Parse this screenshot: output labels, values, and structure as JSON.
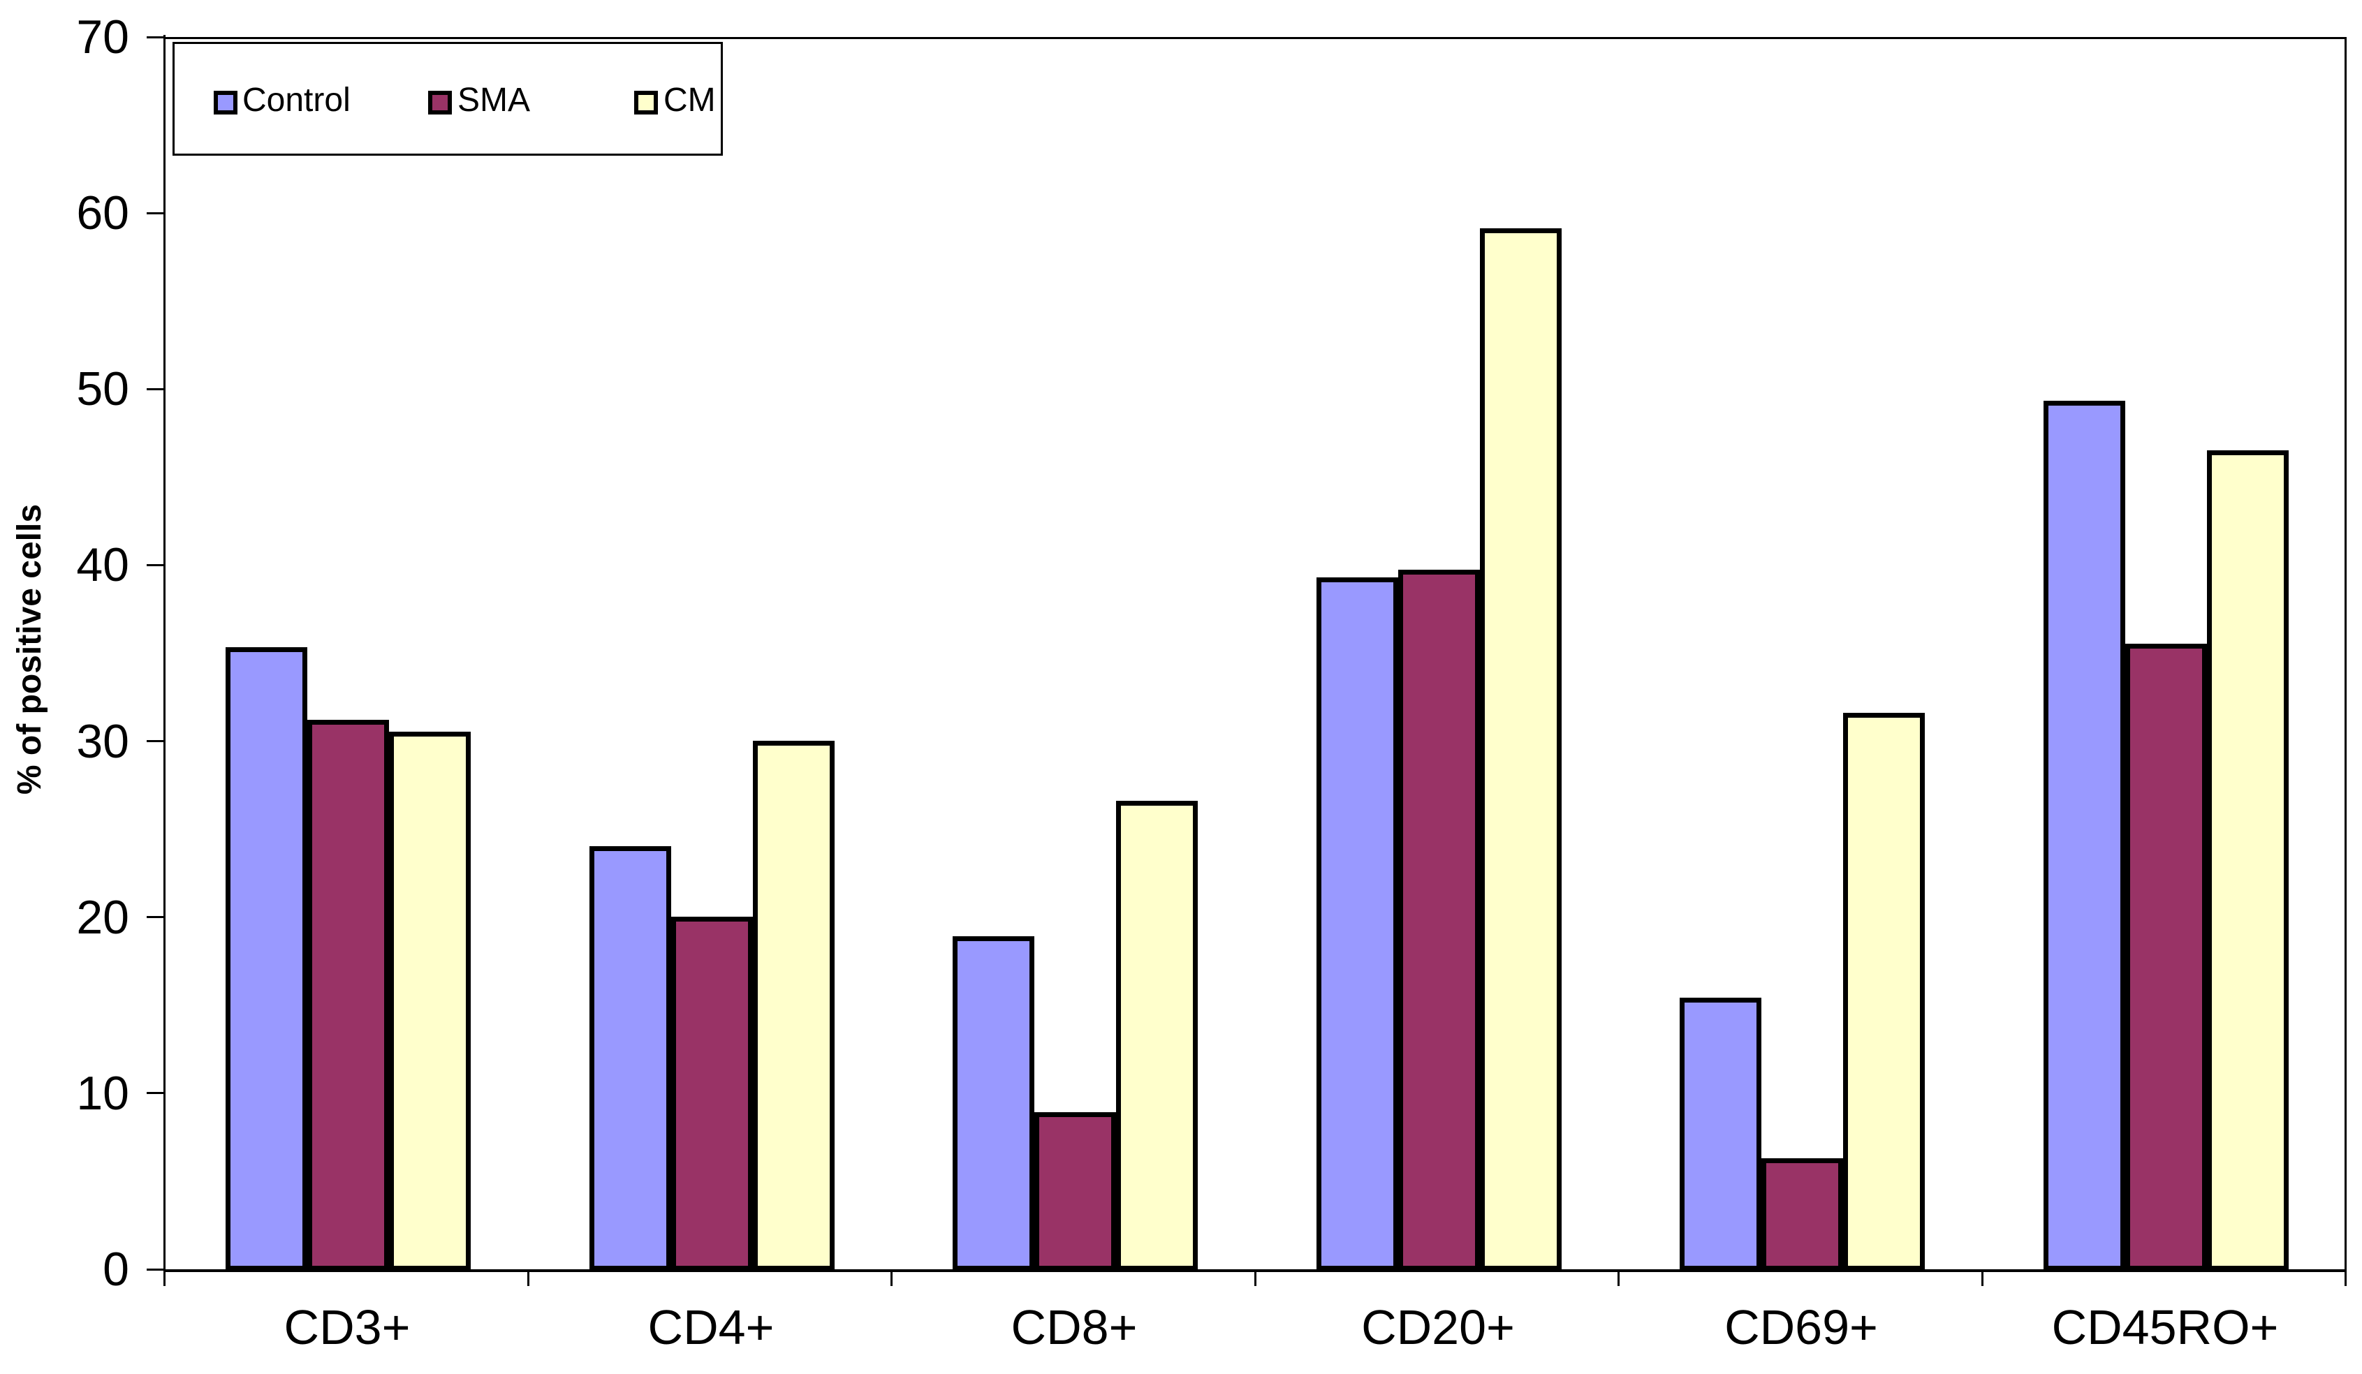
{
  "chart_data": {
    "type": "bar",
    "title": "",
    "xlabel": "",
    "ylabel": "% of positive cells",
    "ylim": [
      0,
      70
    ],
    "ytick_step": 10,
    "ytick_labels": [
      "0",
      "10",
      "20",
      "30",
      "40",
      "50",
      "60",
      "70"
    ],
    "grid": false,
    "legend_position": "top-left",
    "legend_entries": [
      "Control",
      "SMA",
      "CM"
    ],
    "categories": [
      "CD3+",
      "CD4+",
      "CD8+",
      "CD20+",
      "CD69+",
      "CD45RO+"
    ],
    "series": [
      {
        "name": "Control",
        "color": "#9999FF",
        "values": [
          35.4,
          24.1,
          19.0,
          39.4,
          15.5,
          49.4
        ]
      },
      {
        "name": "SMA",
        "color": "#993366",
        "values": [
          31.3,
          20.1,
          9.0,
          39.8,
          6.4,
          35.6
        ]
      },
      {
        "name": "CM",
        "color": "#FFFFCC",
        "values": [
          30.6,
          30.1,
          26.7,
          59.2,
          31.7,
          46.6
        ]
      }
    ],
    "bar_border_color": "#000000",
    "axis_color": "#000000",
    "background": "#FFFFFF"
  }
}
